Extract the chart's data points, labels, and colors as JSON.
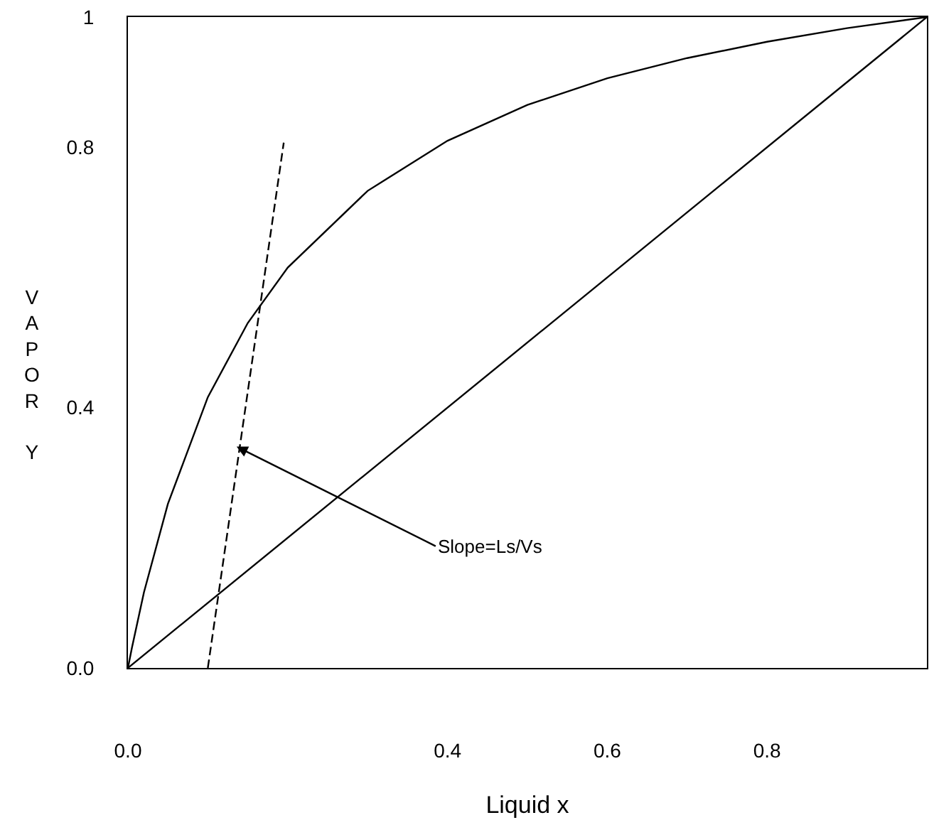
{
  "chart_data": {
    "type": "line",
    "xlabel": "Liquid x",
    "ylabel": "VAPOR Y",
    "xlim": [
      0,
      1
    ],
    "ylim": [
      0,
      1
    ],
    "xticks": [
      {
        "value": 0,
        "label": "0.0"
      },
      0.4,
      0.6,
      0.8
    ],
    "yticks": [
      {
        "value": 0,
        "label": "0.0"
      },
      0.4,
      0.8,
      1
    ],
    "series": [
      {
        "color": "#000000",
        "line_style": "solid",
        "x": [
          0,
          0.005,
          0.02,
          0.05,
          0.1,
          0.15,
          0.2,
          0.3,
          0.4,
          0.5,
          0.6,
          0.7,
          0.8,
          0.9,
          1.0
        ],
        "values": [
          0,
          0.031,
          0.116,
          0.252,
          0.416,
          0.53,
          0.615,
          0.733,
          0.81,
          0.865,
          0.906,
          0.937,
          0.962,
          0.983,
          1.0
        ]
      },
      {
        "color": "#000000",
        "line_style": "solid",
        "x": [
          0,
          1
        ],
        "values": [
          0,
          1
        ]
      },
      {
        "color": "#000000",
        "line_style": "dashed",
        "x": [
          0.1,
          0.195
        ],
        "values": [
          0,
          0.807
        ]
      }
    ],
    "annotations": [
      {
        "text": "Slope=Ls/Vs",
        "x": 0.136,
        "y": 0.34
      }
    ]
  }
}
